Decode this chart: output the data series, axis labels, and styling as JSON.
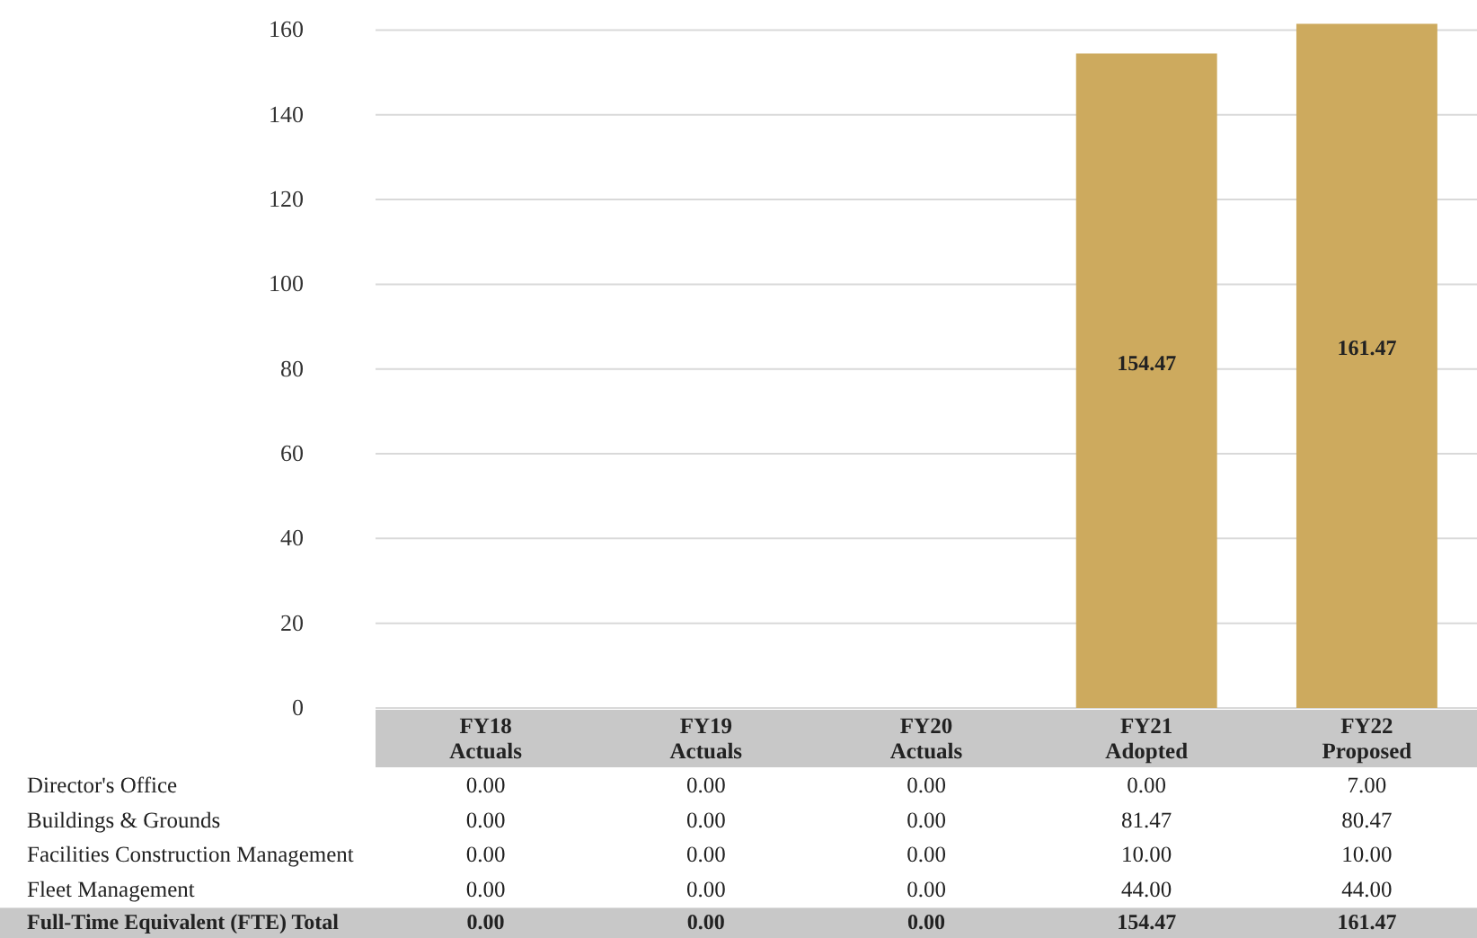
{
  "chart_data": {
    "type": "bar",
    "categories": [
      "FY18 Actuals",
      "FY19 Actuals",
      "FY20 Actuals",
      "FY21 Adopted",
      "FY22 Proposed"
    ],
    "series": [
      {
        "name": "Full-Time Equivalent (FTE) Total",
        "color": "#cdaa5e",
        "values": [
          0,
          0,
          0,
          154.47,
          161.47
        ],
        "value_labels": [
          "0.00",
          "0.00",
          "0.00",
          "154.47",
          "161.47"
        ]
      }
    ],
    "annotations": [
      "Director's Office",
      "0.00",
      "0.00",
      "0.00",
      "0.00",
      "7.00",
      "Buildings & Grounds",
      "0.00",
      "0.00",
      "0.00",
      "81.47",
      "80.47",
      "Facilities Construction Management",
      "0.00",
      "0.00",
      "0.00",
      "10.00",
      "10.00",
      "Fleet Management",
      "0.00",
      "0.00",
      "0.00",
      "44.00",
      "44.00"
    ],
    "ylim": [
      0,
      162
    ],
    "yticks": [
      0,
      20,
      40,
      60,
      80,
      100,
      120,
      140,
      160
    ],
    "grid": "y",
    "legend": false
  }
}
